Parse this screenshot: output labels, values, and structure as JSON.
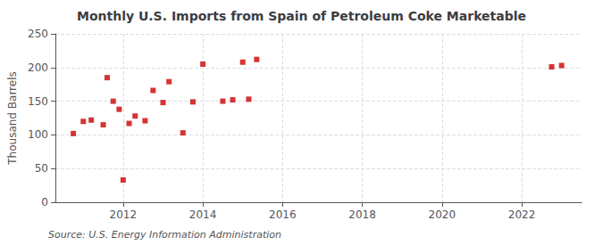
{
  "chart_data": {
    "type": "scatter",
    "title": "Monthly U.S. Imports from Spain of Petroleum Coke Marketable",
    "ylabel": "Thousand Barrels",
    "annotation": "Source: U.S. Energy Information Administration",
    "x": [
      2010.75,
      2011.0,
      2011.2,
      2011.5,
      2011.6,
      2011.75,
      2011.9,
      2012.0,
      2012.15,
      2012.3,
      2012.55,
      2012.75,
      2013.0,
      2013.15,
      2013.5,
      2013.75,
      2014.0,
      2014.5,
      2014.75,
      2015.0,
      2015.15,
      2015.35,
      2022.75,
      2023.0
    ],
    "values": [
      102,
      120,
      122,
      115,
      185,
      150,
      138,
      33,
      117,
      128,
      121,
      166,
      148,
      179,
      103,
      149,
      205,
      150,
      152,
      208,
      153,
      212,
      201,
      203
    ],
    "color": "#cc0000",
    "marker": "square",
    "xlim": [
      2010.3,
      2023.5
    ],
    "ylim": [
      0,
      250
    ],
    "xticks": [
      2012,
      2014,
      2016,
      2018,
      2020,
      2022
    ],
    "yticks": [
      0,
      50,
      100,
      150,
      200,
      250
    ],
    "grid": true
  }
}
